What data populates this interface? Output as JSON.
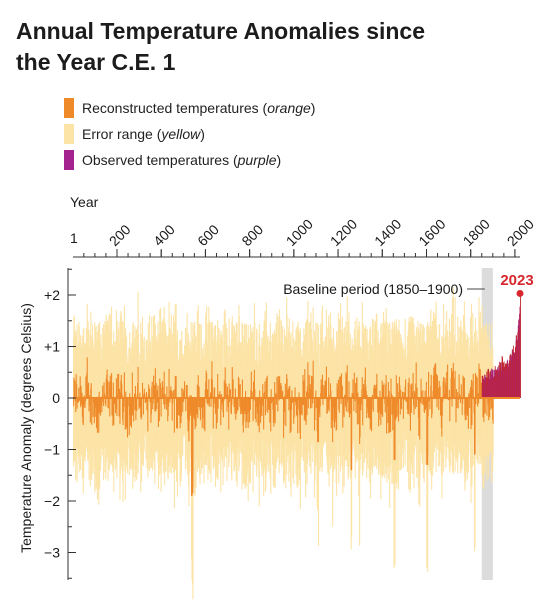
{
  "chart_data": {
    "type": "bar",
    "title_line1": "Annual Temperature Anomalies since",
    "title_line2": "the Year C.E. 1",
    "xlabel": "Year",
    "ylabel": "Temperature Anomaly (degrees Celsius)",
    "xlim": [
      1,
      2023
    ],
    "ylim": [
      -3.5,
      2.5
    ],
    "x_ticks": [
      {
        "value": 1,
        "label": "1"
      },
      {
        "value": 200,
        "label": "200"
      },
      {
        "value": 400,
        "label": "400"
      },
      {
        "value": 600,
        "label": "600"
      },
      {
        "value": 800,
        "label": "800"
      },
      {
        "value": 1000,
        "label": "1000"
      },
      {
        "value": 1200,
        "label": "1200"
      },
      {
        "value": 1400,
        "label": "1400"
      },
      {
        "value": 1600,
        "label": "1600"
      },
      {
        "value": 1800,
        "label": "1800"
      },
      {
        "value": 2000,
        "label": "2000"
      }
    ],
    "y_ticks": [
      {
        "value": 2,
        "label": "+2"
      },
      {
        "value": 1,
        "label": "+1"
      },
      {
        "value": 0,
        "label": "0"
      },
      {
        "value": -1,
        "label": "−1"
      },
      {
        "value": -2,
        "label": "−2"
      },
      {
        "value": -3,
        "label": "−3"
      }
    ],
    "legend": [
      {
        "label": "Reconstructed temperatures (",
        "label_em": "orange",
        "label_end": ")",
        "color": "#ee8a2a"
      },
      {
        "label": "Error range (",
        "label_em": "yellow",
        "label_end": ")",
        "color": "#fce3a6"
      },
      {
        "label": "Observed temperatures (",
        "label_em": "purple",
        "label_end": ")",
        "color": "#a4238f"
      }
    ],
    "baseline": {
      "label": "Baseline period (1850–1900)",
      "start": 1850,
      "end": 1900,
      "color": "#dcdcdc"
    },
    "highlight": {
      "label": "2023",
      "year": 2023,
      "value": 2.03,
      "color": "#d7262e"
    },
    "colors": {
      "reconstructed": "#ee8a2a",
      "error_range": "#fce3a6",
      "observed": "#a4238f",
      "overlap": "#c1272d"
    },
    "reconstructed_summary": {
      "start_year": 1,
      "end_year": 1900,
      "mean": -0.05,
      "typical_min": -1.9,
      "typical_max": 1.4
    },
    "observed": {
      "start_year": 1850,
      "end_year": 2023,
      "anchor_years": [
        1850,
        1880,
        1900,
        1920,
        1940,
        1960,
        1980,
        2000,
        2010,
        2015,
        2020,
        2023
      ],
      "anchor_values": [
        0.35,
        0.4,
        0.4,
        0.5,
        0.65,
        0.55,
        0.7,
        1.0,
        1.15,
        1.45,
        1.5,
        2.03
      ]
    },
    "notable_lows": [
      {
        "year": 536,
        "value": -1.9
      },
      {
        "year": 540,
        "value": -1.85
      },
      {
        "year": 1258,
        "value": -1.4
      },
      {
        "year": 1453,
        "value": -1.2
      },
      {
        "year": 1601,
        "value": -1.3
      },
      {
        "year": 1816,
        "value": -1.1
      }
    ]
  }
}
